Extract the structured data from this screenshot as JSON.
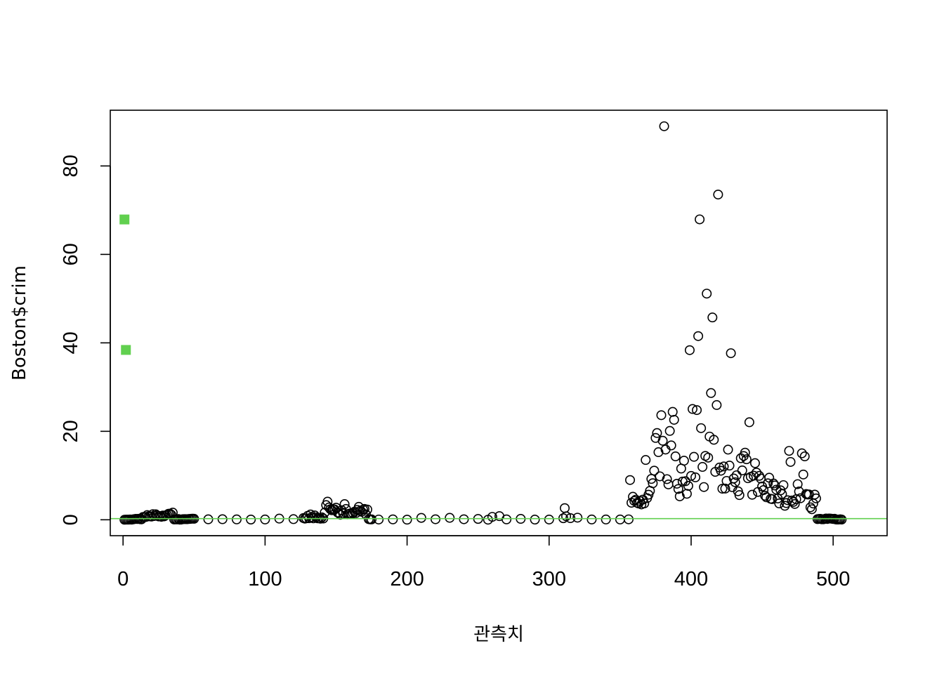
{
  "chart_data": {
    "type": "scatter",
    "title": "",
    "xlabel": "관측치",
    "ylabel": "Boston$crim",
    "xlim": [
      -9,
      538
    ],
    "ylim": [
      -3.6,
      92.6
    ],
    "x_ticks": [
      0,
      100,
      200,
      300,
      400,
      500
    ],
    "x_tick_labels": [
      "0",
      "100",
      "200",
      "300",
      "400",
      "500"
    ],
    "y_ticks": [
      0,
      20,
      40,
      60,
      80
    ],
    "y_tick_labels": [
      "0",
      "20",
      "40",
      "60",
      "80"
    ],
    "grid": false,
    "legend": "none",
    "reference_line": {
      "y": 0.257,
      "color": "#61D04F"
    },
    "highlight_points": {
      "color": "#61D04F",
      "points": [
        [
          1,
          67.9
        ],
        [
          2,
          38.4
        ]
      ]
    },
    "series": [
      {
        "marker": "open-circle",
        "color": "#000000",
        "points": [
          [
            1,
            0.006
          ],
          [
            2,
            0.027
          ],
          [
            3,
            0.027
          ],
          [
            4,
            0.032
          ],
          [
            5,
            0.069
          ],
          [
            6,
            0.03
          ],
          [
            7,
            0.088
          ],
          [
            8,
            0.145
          ],
          [
            9,
            0.211
          ],
          [
            10,
            0.17
          ],
          [
            11,
            0.225
          ],
          [
            12,
            0.117
          ],
          [
            13,
            0.094
          ],
          [
            14,
            0.63
          ],
          [
            15,
            0.638
          ],
          [
            16,
            0.627
          ],
          [
            17,
            1.054
          ],
          [
            18,
            0.784
          ],
          [
            19,
            0.803
          ],
          [
            20,
            0.726
          ],
          [
            21,
            1.252
          ],
          [
            22,
            0.852
          ],
          [
            23,
            1.232
          ],
          [
            24,
            0.988
          ],
          [
            25,
            0.75
          ],
          [
            26,
            0.841
          ],
          [
            27,
            0.672
          ],
          [
            28,
            0.956
          ],
          [
            29,
            0.773
          ],
          [
            30,
            1.002
          ],
          [
            31,
            1.131
          ],
          [
            32,
            1.355
          ],
          [
            33,
            1.388
          ],
          [
            34,
            1.152
          ],
          [
            35,
            1.613
          ],
          [
            36,
            0.064
          ],
          [
            37,
            0.097
          ],
          [
            38,
            0.08
          ],
          [
            39,
            0.175
          ],
          [
            40,
            0.028
          ],
          [
            41,
            0.034
          ],
          [
            42,
            0.127
          ],
          [
            43,
            0.141
          ],
          [
            44,
            0.159
          ],
          [
            45,
            0.123
          ],
          [
            46,
            0.171
          ],
          [
            47,
            0.188
          ],
          [
            48,
            0.229
          ],
          [
            49,
            0.254
          ],
          [
            50,
            0.22
          ],
          [
            60,
            0.105
          ],
          [
            70,
            0.129
          ],
          [
            80,
            0.081
          ],
          [
            90,
            0.053
          ],
          [
            100,
            0.069
          ],
          [
            110,
            0.263
          ],
          [
            120,
            0.144
          ],
          [
            127,
            0.387
          ],
          [
            128,
            0.259
          ],
          [
            129,
            0.325
          ],
          [
            130,
            0.881
          ],
          [
            131,
            0.34
          ],
          [
            132,
            1.193
          ],
          [
            133,
            0.59
          ],
          [
            134,
            0.33
          ],
          [
            135,
            0.976
          ],
          [
            136,
            0.557
          ],
          [
            137,
            0.323
          ],
          [
            138,
            0.352
          ],
          [
            139,
            0.25
          ],
          [
            140,
            0.545
          ],
          [
            141,
            0.291
          ],
          [
            142,
            1.629
          ],
          [
            143,
            3.321
          ],
          [
            144,
            4.097
          ],
          [
            145,
            2.78
          ],
          [
            146,
            2.379
          ],
          [
            147,
            2.155
          ],
          [
            148,
            2.369
          ],
          [
            149,
            2.331
          ],
          [
            150,
            2.733
          ],
          [
            151,
            1.657
          ],
          [
            152,
            1.496
          ],
          [
            153,
            1.127
          ],
          [
            154,
            2.149
          ],
          [
            155,
            1.414
          ],
          [
            156,
            3.535
          ],
          [
            157,
            2.447
          ],
          [
            158,
            1.223
          ],
          [
            159,
            1.343
          ],
          [
            160,
            1.425
          ],
          [
            161,
            1.273
          ],
          [
            162,
            1.463
          ],
          [
            163,
            1.834
          ],
          [
            164,
            1.519
          ],
          [
            165,
            2.242
          ],
          [
            166,
            2.924
          ],
          [
            167,
            2.01
          ],
          [
            168,
            1.8
          ],
          [
            169,
            2.3
          ],
          [
            170,
            2.45
          ],
          [
            171,
            1.207
          ],
          [
            172,
            2.314
          ],
          [
            173,
            0.139
          ],
          [
            174,
            0.092
          ],
          [
            175,
            0.084
          ],
          [
            180,
            0.058
          ],
          [
            190,
            0.09
          ],
          [
            200,
            0.03
          ],
          [
            210,
            0.43
          ],
          [
            220,
            0.115
          ],
          [
            230,
            0.442
          ],
          [
            240,
            0.113
          ],
          [
            250,
            0.191
          ],
          [
            257,
            0.015
          ],
          [
            260,
            0.654
          ],
          [
            265,
            0.825
          ],
          [
            270,
            0.091
          ],
          [
            280,
            0.21
          ],
          [
            290,
            0.043
          ],
          [
            300,
            0.055
          ],
          [
            310,
            0.35
          ],
          [
            311,
            2.635
          ],
          [
            312,
            0.791
          ],
          [
            315,
            0.369
          ],
          [
            320,
            0.476
          ],
          [
            330,
            0.067
          ],
          [
            340,
            0.062
          ],
          [
            350,
            0.063
          ],
          [
            356,
            0.1
          ],
          [
            357,
            8.983
          ],
          [
            358,
            3.849
          ],
          [
            359,
            5.202
          ],
          [
            360,
            4.261
          ],
          [
            361,
            4.542
          ],
          [
            362,
            3.837
          ],
          [
            363,
            3.678
          ],
          [
            364,
            4.222
          ],
          [
            365,
            3.474
          ],
          [
            366,
            4.556
          ],
          [
            367,
            3.697
          ],
          [
            368,
            13.522
          ],
          [
            369,
            4.898
          ],
          [
            370,
            5.67
          ],
          [
            371,
            6.539
          ],
          [
            372,
            9.232
          ],
          [
            373,
            8.267
          ],
          [
            374,
            11.108
          ],
          [
            375,
            18.499
          ],
          [
            376,
            19.609
          ],
          [
            377,
            15.288
          ],
          [
            378,
            9.823
          ],
          [
            379,
            23.648
          ],
          [
            380,
            17.867
          ],
          [
            381,
            88.976
          ],
          [
            382,
            15.875
          ],
          [
            383,
            9.187
          ],
          [
            384,
            7.992
          ],
          [
            385,
            20.085
          ],
          [
            386,
            16.811
          ],
          [
            387,
            24.394
          ],
          [
            388,
            22.597
          ],
          [
            389,
            14.334
          ],
          [
            390,
            8.153
          ],
          [
            391,
            6.962
          ],
          [
            392,
            5.293
          ],
          [
            393,
            11.578
          ],
          [
            394,
            8.645
          ],
          [
            395,
            13.36
          ],
          [
            396,
            8.717
          ],
          [
            397,
            5.872
          ],
          [
            398,
            7.672
          ],
          [
            399,
            38.352
          ],
          [
            400,
            9.917
          ],
          [
            401,
            25.046
          ],
          [
            402,
            14.236
          ],
          [
            403,
            9.596
          ],
          [
            404,
            24.801
          ],
          [
            405,
            41.529
          ],
          [
            406,
            67.921
          ],
          [
            407,
            20.717
          ],
          [
            408,
            11.951
          ],
          [
            409,
            7.403
          ],
          [
            410,
            14.438
          ],
          [
            411,
            51.136
          ],
          [
            412,
            14.05
          ],
          [
            413,
            18.811
          ],
          [
            414,
            28.656
          ],
          [
            415,
            45.746
          ],
          [
            416,
            18.085
          ],
          [
            417,
            10.834
          ],
          [
            418,
            25.941
          ],
          [
            419,
            73.534
          ],
          [
            420,
            11.816
          ],
          [
            421,
            11.088
          ],
          [
            422,
            7.022
          ],
          [
            423,
            12.048
          ],
          [
            424,
            7.05
          ],
          [
            425,
            8.792
          ],
          [
            426,
            15.86
          ],
          [
            427,
            12.247
          ],
          [
            428,
            37.662
          ],
          [
            429,
            7.367
          ],
          [
            430,
            9.339
          ],
          [
            431,
            8.492
          ],
          [
            432,
            10.062
          ],
          [
            433,
            6.444
          ],
          [
            434,
            5.581
          ],
          [
            435,
            13.914
          ],
          [
            436,
            11.16
          ],
          [
            437,
            14.421
          ],
          [
            438,
            15.177
          ],
          [
            439,
            13.678
          ],
          [
            440,
            9.391
          ],
          [
            441,
            22.051
          ],
          [
            442,
            9.724
          ],
          [
            443,
            5.666
          ],
          [
            444,
            9.967
          ],
          [
            445,
            12.802
          ],
          [
            446,
            10.671
          ],
          [
            447,
            6.288
          ],
          [
            448,
            9.925
          ],
          [
            449,
            9.329
          ],
          [
            450,
            7.526
          ],
          [
            451,
            6.718
          ],
          [
            452,
            5.441
          ],
          [
            453,
            5.09
          ],
          [
            454,
            8.248
          ],
          [
            455,
            9.514
          ],
          [
            456,
            4.752
          ],
          [
            457,
            4.669
          ],
          [
            458,
            8.201
          ],
          [
            459,
            7.751
          ],
          [
            460,
            6.801
          ],
          [
            461,
            4.812
          ],
          [
            462,
            3.693
          ],
          [
            463,
            6.655
          ],
          [
            464,
            5.821
          ],
          [
            465,
            7.839
          ],
          [
            466,
            3.164
          ],
          [
            467,
            3.775
          ],
          [
            468,
            4.422
          ],
          [
            469,
            15.575
          ],
          [
            470,
            13.076
          ],
          [
            471,
            4.349
          ],
          [
            472,
            4.038
          ],
          [
            473,
            3.569
          ],
          [
            474,
            4.647
          ],
          [
            475,
            8.056
          ],
          [
            476,
            6.393
          ],
          [
            477,
            4.871
          ],
          [
            478,
            15.024
          ],
          [
            479,
            10.233
          ],
          [
            480,
            14.334
          ],
          [
            481,
            5.824
          ],
          [
            482,
            5.708
          ],
          [
            483,
            5.731
          ],
          [
            484,
            2.818
          ],
          [
            485,
            2.379
          ],
          [
            486,
            3.674
          ],
          [
            487,
            5.692
          ],
          [
            488,
            4.836
          ],
          [
            489,
            0.151
          ],
          [
            490,
            0.183
          ],
          [
            491,
            0.207
          ],
          [
            492,
            0.106
          ],
          [
            493,
            0.111
          ],
          [
            494,
            0.173
          ],
          [
            495,
            0.28
          ],
          [
            496,
            0.179
          ],
          [
            497,
            0.29
          ],
          [
            498,
            0.268
          ],
          [
            499,
            0.239
          ],
          [
            500,
            0.178
          ],
          [
            501,
            0.224
          ],
          [
            502,
            0.063
          ],
          [
            503,
            0.045
          ],
          [
            504,
            0.061
          ],
          [
            505,
            0.11
          ],
          [
            506,
            0.047
          ]
        ]
      }
    ]
  }
}
